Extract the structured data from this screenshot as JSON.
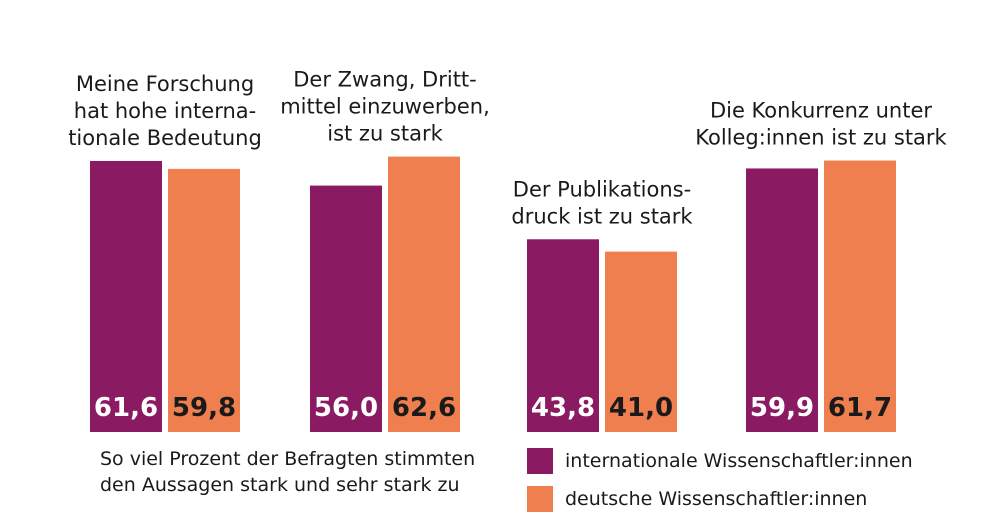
{
  "chart_data": {
    "type": "bar",
    "categories": [
      [
        "Meine Forschung",
        "hat hohe interna-",
        "tionale Bedeutung"
      ],
      [
        "Der Zwang, Dritt-",
        "mittel einzuwerben,",
        "ist zu stark"
      ],
      [
        "Der Publikations-",
        "druck ist zu stark"
      ],
      [
        "Die Konkurrenz unter",
        "Kolleg:innen ist zu stark"
      ]
    ],
    "series": [
      {
        "name": "internationale Wissenschaftler:innen",
        "color": "#8a1a62",
        "values": [
          61.6,
          56.0,
          43.8,
          59.9
        ],
        "labels": [
          "61,6",
          "56,0",
          "43,8",
          "59,9"
        ]
      },
      {
        "name": "deutsche Wissenschaftler:innen",
        "color": "#ef7f4f",
        "values": [
          59.8,
          62.6,
          41.0,
          61.7
        ],
        "labels": [
          "59,8",
          "62,6",
          "41,0",
          "61,7"
        ]
      }
    ],
    "value_label_colors": [
      "#ffffff",
      "#1a1a1a"
    ],
    "note": [
      "So viel Prozent der Befragten stimmten",
      "den Aussagen stark und sehr stark zu"
    ],
    "legend_position": "bottom-right",
    "grid": false
  }
}
